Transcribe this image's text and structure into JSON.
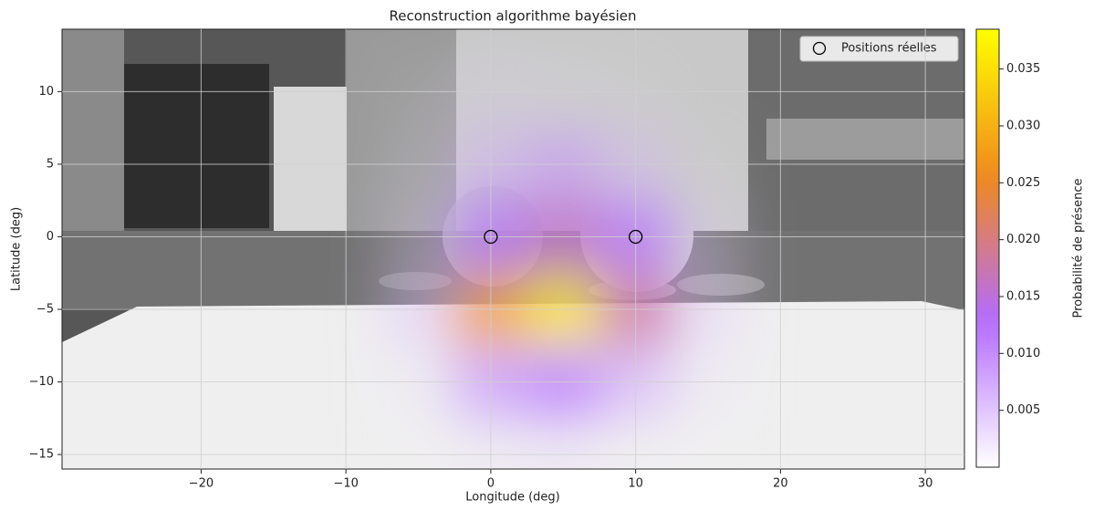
{
  "chart_data": {
    "type": "heatmap",
    "title": "Reconstruction algorithme bayésien",
    "x_label": "Longitude (deg)",
    "y_label": "Latitude (deg)",
    "colorbar_label": "Probabilité de présence",
    "xlim": [
      -29.6,
      32.7
    ],
    "ylim": [
      -16,
      14.3
    ],
    "xticks": [
      {
        "value": -20,
        "label": "−20"
      },
      {
        "value": -10,
        "label": "−10"
      },
      0,
      10,
      20,
      30
    ],
    "yticks": [
      {
        "value": -15,
        "label": "−15"
      },
      {
        "value": -10,
        "label": "−10"
      },
      {
        "value": -5,
        "label": "−5"
      },
      0,
      5,
      10
    ],
    "grid": true,
    "x": [
      -10,
      -5,
      0,
      5,
      10,
      15,
      20
    ],
    "y": [
      10,
      5,
      0,
      -5,
      -10,
      -15
    ],
    "z": [
      [
        0,
        0.001,
        0.003,
        0.002,
        0.001,
        0,
        0
      ],
      [
        0,
        0.002,
        0.007,
        0.009,
        0.006,
        0.001,
        0
      ],
      [
        0,
        0.004,
        0.012,
        0.016,
        0.012,
        0.004,
        0
      ],
      [
        0,
        0.006,
        0.028,
        0.036,
        0.018,
        0.005,
        0
      ],
      [
        0,
        0.003,
        0.01,
        0.012,
        0.008,
        0.003,
        0
      ],
      [
        0,
        0.001,
        0.003,
        0.004,
        0.002,
        0.001,
        0
      ]
    ],
    "clim": [
      0,
      0.0385
    ],
    "cticks": [
      0.005,
      {
        "value": 0.01,
        "label": "0.010"
      },
      0.015,
      {
        "value": 0.02,
        "label": "0.020"
      },
      0.025,
      {
        "value": 0.03,
        "label": "0.030"
      },
      0.035
    ],
    "colors": [
      "#ffffff",
      "#b36bff",
      "#f08a1c",
      "#ffff00"
    ],
    "points": {
      "name": "Positions réelles",
      "x": [
        0,
        10
      ],
      "values": [
        0,
        0
      ],
      "color": "#000000"
    },
    "legend": "upper right"
  }
}
